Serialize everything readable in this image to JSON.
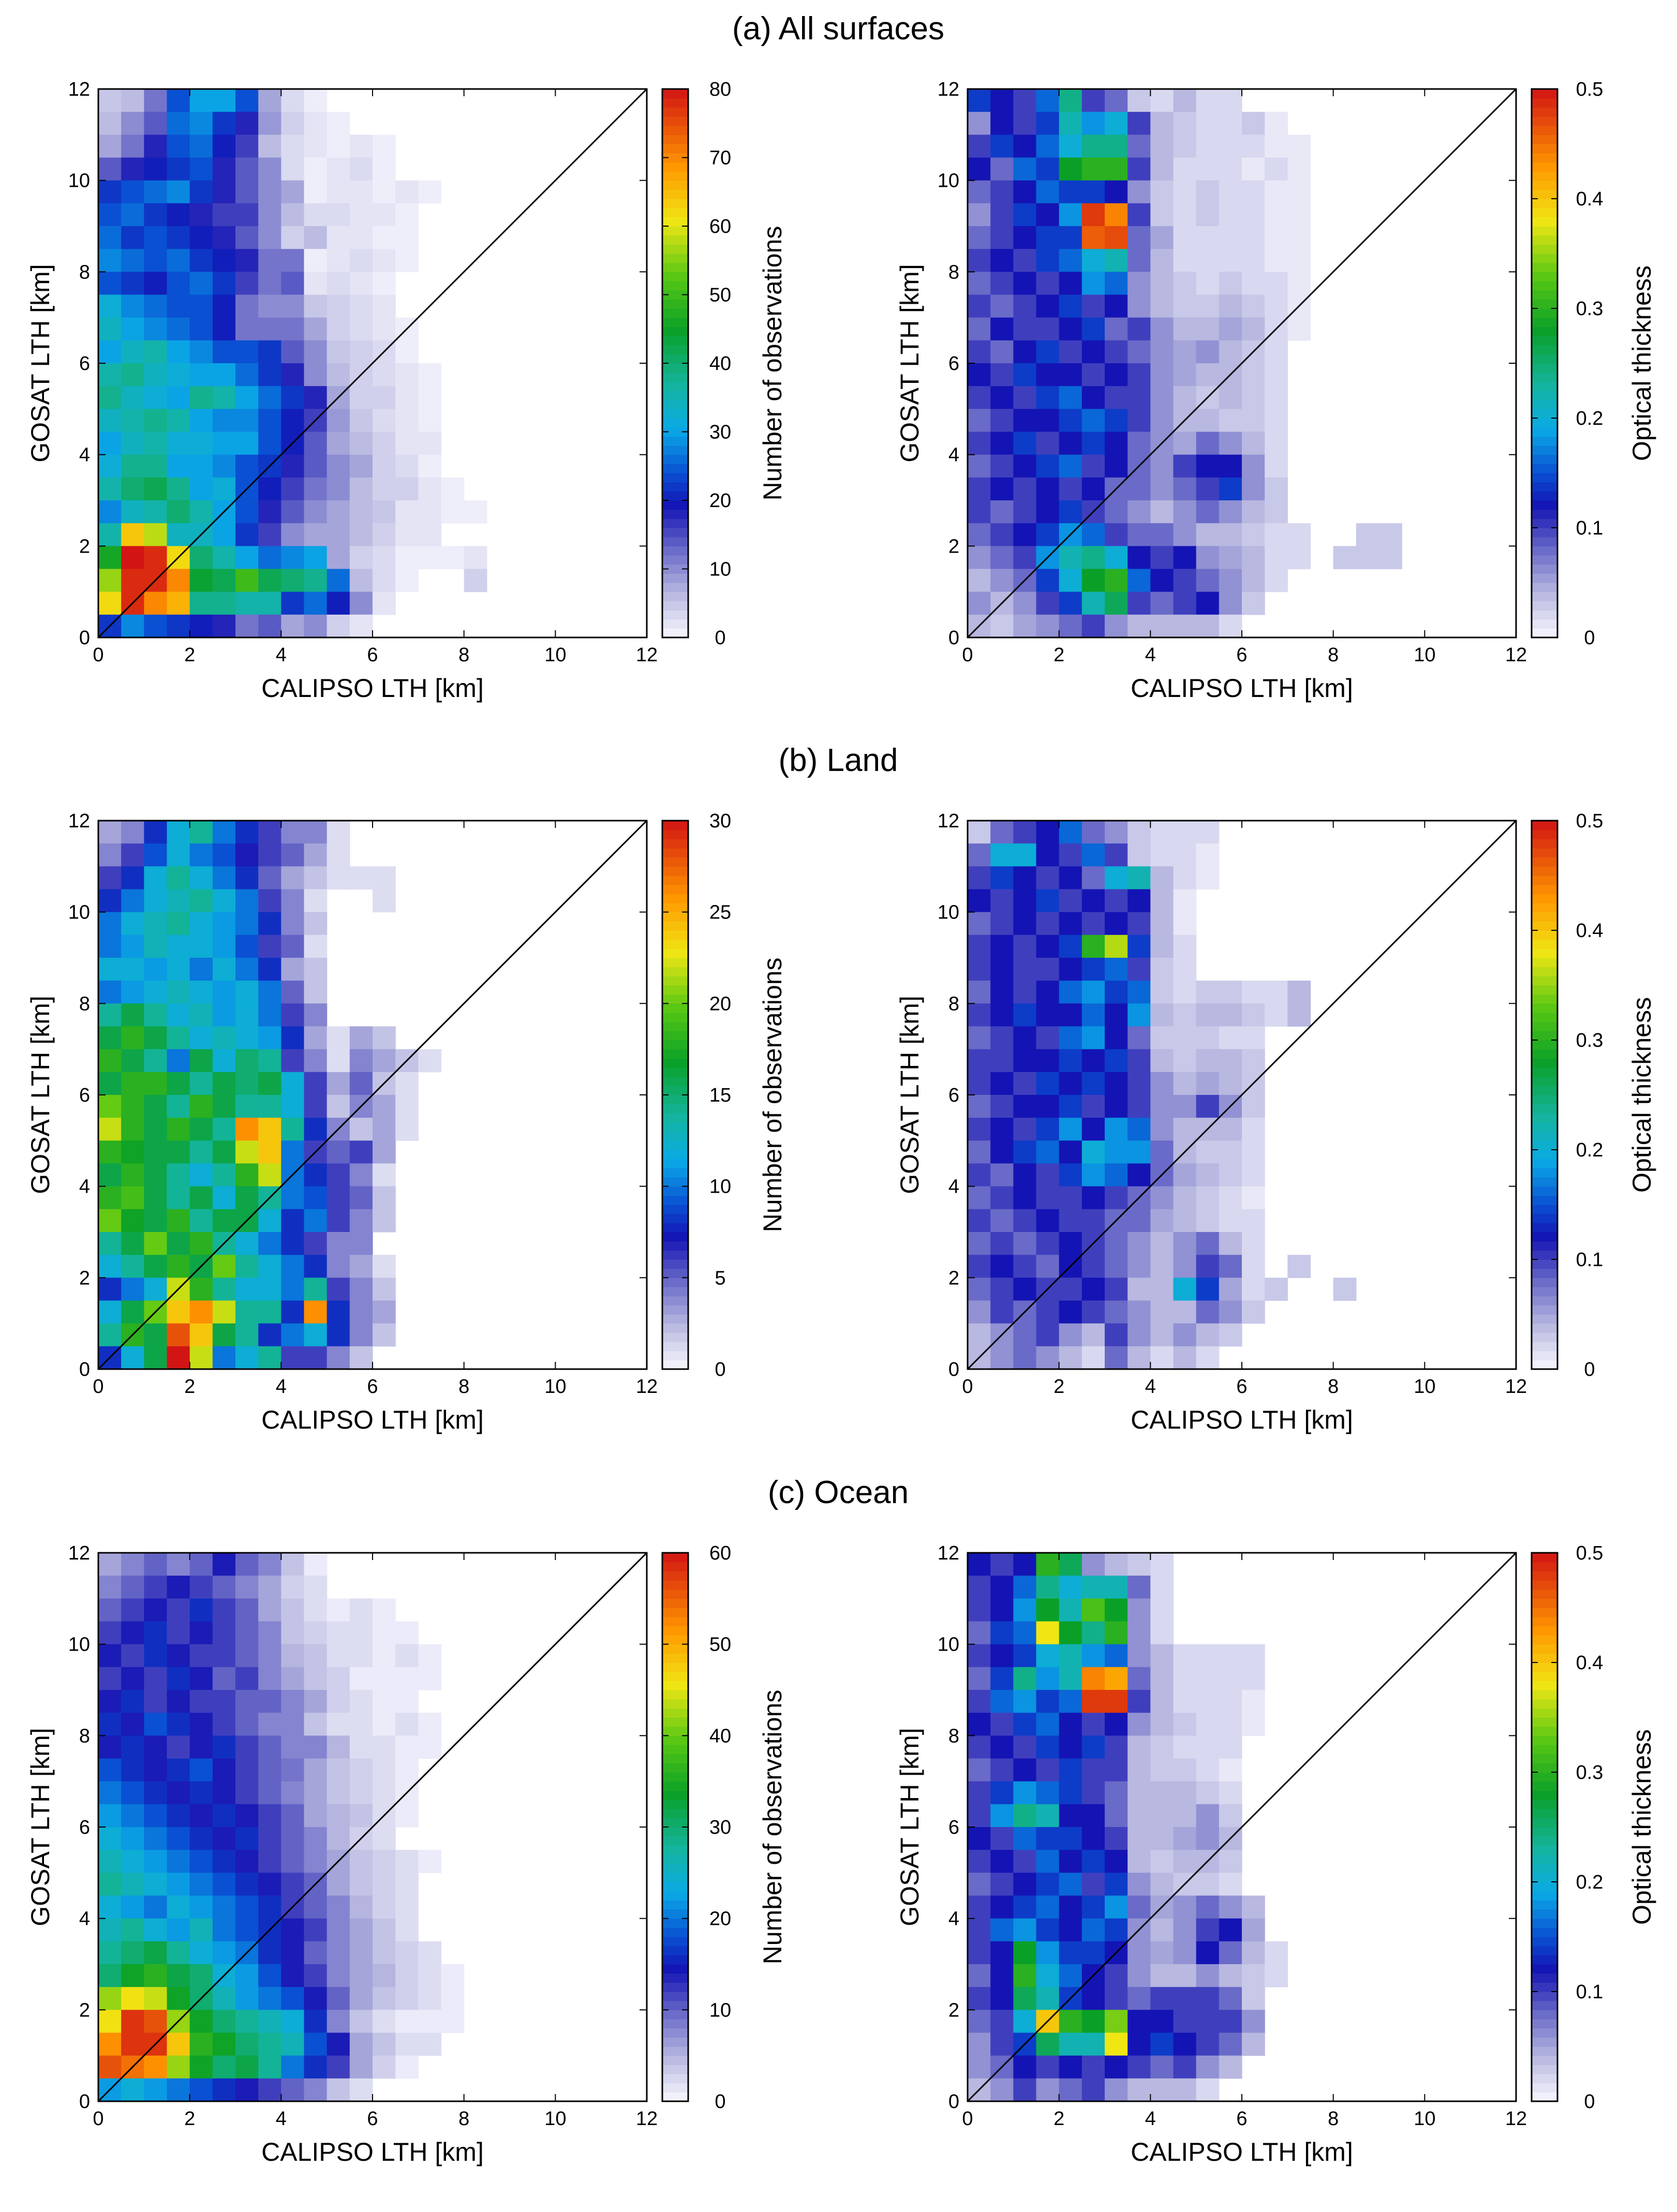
{
  "figure": {
    "rows": [
      {
        "title": "(a) All surfaces"
      },
      {
        "title": "(b) Land"
      },
      {
        "title": "(c) Ocean"
      }
    ],
    "xlabel": "CALIPSO LTH [km]",
    "ylabel": "GOSAT LTH [km]",
    "axis_ticks": [
      "0",
      "2",
      "4",
      "6",
      "8",
      "10",
      "12"
    ],
    "cbar_labels": {
      "count": "Number of observations",
      "tau": "Optical thickness"
    }
  },
  "colormap": {
    "stops": [
      {
        "v": 0.0,
        "c": "#f8f8ff"
      },
      {
        "v": 0.08,
        "c": "#b8b8e0"
      },
      {
        "v": 0.16,
        "c": "#6a6ac8"
      },
      {
        "v": 0.24,
        "c": "#1414b4"
      },
      {
        "v": 0.3,
        "c": "#0a50d2"
      },
      {
        "v": 0.38,
        "c": "#0aaae6"
      },
      {
        "v": 0.46,
        "c": "#14b4a0"
      },
      {
        "v": 0.56,
        "c": "#0aa028"
      },
      {
        "v": 0.66,
        "c": "#5ac814"
      },
      {
        "v": 0.76,
        "c": "#f0e614"
      },
      {
        "v": 0.86,
        "c": "#ff9600"
      },
      {
        "v": 1.0,
        "c": "#d21414"
      }
    ],
    "frame_color": "#000000",
    "diag_color": "#000000"
  },
  "chart_data": [
    {
      "type": "heatmap",
      "title": "(a) All surfaces",
      "xlabel": "CALIPSO LTH [km]",
      "ylabel": "GOSAT LTH [km]",
      "xlim": [
        0,
        12
      ],
      "ylim": [
        0,
        12
      ],
      "bin_size_km": 0.5,
      "colorbar": {
        "label": "Number of observations",
        "range": [
          0,
          80
        ],
        "ticks": [
          "0",
          "10",
          "20",
          "30",
          "40",
          "50",
          "60",
          "70",
          "80"
        ]
      },
      "grid_rows_top_to_bottom": [
        "5 6 12 24 30 30 24 8 3 1 0 0 0 0 0 0 0 0 0 0 0 0 0 0",
        "6 10 14 26 28 22 18 9 4 2 1 0 0 0 0 0 0 0 0 0 0 0 0 0",
        "8 12 18 24 26 20 16 6 3 2 1 2 1 0 0 0 0 0 0 0 0 0 0 0",
        "14 18 20 22 24 18 14 10 3 1 2 3 1 0 0 0 0 0 0 0 0 0 0 0",
        "22 24 26 28 22 18 14 10 8 1 2 2 1 2 1 0 0 0 0 0 0 0 0 0",
        "24 26 22 20 18 16 16 10 6 3 3 2 2 1 0 0 0 0 0 0 0 0 0 0",
        "26 22 24 22 20 18 14 10 4 6 2 2 1 1 0 0 0 0 0 0 0 0 0 0",
        "28 26 24 26 22 20 18 12 12 1 2 3 2 1 0 0 0 0 0 0 0 0 0 0",
        "24 22 20 24 26 22 16 12 14 2 3 2 1 0 0 0 0 0 0 0 0 0 0 0",
        "32 28 26 24 24 20 12 10 10 5 4 3 2 0 0 0 0 0 0 0 0 0 0 0",
        "34 30 28 26 24 20 12 12 12 8 4 3 2 1 0 0 0 0 0 0 0 0 0 0",
        "30 34 36 30 28 24 24 22 14 10 5 4 3 1 0 0 0 0 0 0 0 0 0 0",
        "36 38 34 32 30 30 26 22 18 10 6 4 3 2 1 0 0 0 0 0 0 0 0 0",
        "38 34 32 30 38 36 30 26 22 18 8 4 4 2 1 0 0 0 0 0 0 0 0 0",
        "34 36 38 36 30 28 28 24 20 16 9 5 3 2 1 0 0 0 0 0 0 0 0 0",
        "30 34 36 32 32 30 30 24 20 14 8 6 4 2 2 0 0 0 0 0 0 0 0 0",
        "32 38 38 30 30 28 24 22 18 14 10 8 4 3 1 0 0 0 0 0 0 0 0 0",
        "36 40 42 38 30 32 24 20 16 12 10 6 4 4 2 1 0 0 0 0 0 0 0 0",
        "28 34 36 40 36 30 24 18 14 10 8 6 5 2 2 1 1 0 0 0 0 0 0 0",
        "36 64 58 34 34 30 22 16 10 8 8 6 4 2 2 0 0 0 0 0 0 0 0 0",
        "46 80 78 62 40 36 30 26 28 30 8 4 3 1 1 1 2 0 0 0 0 0 0 0",
        "56 78 78 70 44 42 50 42 40 38 26 6 3 1 0 0 4 0 0 0 0 0 0 0",
        "62 78 70 66 38 38 36 36 22 26 20 10 2 0 0 0 0 0 0 0 0 0 0 0",
        "22 28 24 22 20 18 12 14 8 10 4 2 0 0 0 0 0 0 0 0 0 0 0 0"
      ]
    },
    {
      "type": "heatmap",
      "title": "(a) All surfaces",
      "xlabel": "CALIPSO LTH [km]",
      "ylabel": "GOSAT LTH [km]",
      "xlim": [
        0,
        12
      ],
      "ylim": [
        0,
        12
      ],
      "bin_size_km": 0.5,
      "colorbar": {
        "label": "Optical thickness",
        "range": [
          0,
          0.5
        ],
        "ticks": [
          "0",
          "0.1",
          "0.2",
          "0.3",
          "0.4",
          "0.5"
        ]
      },
      "grid_rows_top_to_bottom": [
        "0.14 0.12 0.10 0.16 0.24 0.10 0.08 0.03 0.02 0.04 0.02 0.02 0.00 0.00 0.00 0.00 0.00 0.00 0.00 0.00 0.00 0.00 0.00 0.00",
        "0.06 0.12 0.10 0.14 0.22 0.18 0.20 0.10 0.04 0.03 0.02 0.02 0.03 0.01 0.00 0.00 0.00 0.00 0.00 0.00 0.00 0.00 0.00 0.00",
        "0.10 0.14 0.12 0.16 0.20 0.24 0.24 0.08 0.04 0.03 0.02 0.02 0.02 0.01 0.01 0.00 0.00 0.00 0.00 0.00 0.00 0.00 0.00 0.00",
        "0.12 0.08 0.16 0.14 0.28 0.30 0.30 0.10 0.04 0.02 0.02 0.02 0.01 0.02 0.01 0.00 0.00 0.00 0.00 0.00 0.00 0.00 0.00 0.00",
        "0.08 0.10 0.12 0.16 0.14 0.14 0.12 0.06 0.03 0.02 0.03 0.02 0.02 0.01 0.01 0.00 0.00 0.00 0.00 0.00 0.00 0.00 0.00 0.00",
        "0.06 0.10 0.14 0.12 0.18 0.48 0.44 0.10 0.03 0.02 0.03 0.02 0.02 0.01 0.01 0.00 0.00 0.00 0.00 0.00 0.00 0.00 0.00 0.00",
        "0.08 0.10 0.12 0.14 0.14 0.46 0.47 0.08 0.05 0.02 0.02 0.02 0.02 0.01 0.01 0.00 0.00 0.00 0.00 0.00 0.00 0.00 0.00 0.00",
        "0.10 0.12 0.10 0.14 0.16 0.20 0.22 0.08 0.04 0.02 0.02 0.02 0.02 0.01 0.01 0.00 0.00 0.00 0.00 0.00 0.00 0.00 0.00 0.00",
        "0.08 0.10 0.12 0.10 0.12 0.18 0.16 0.06 0.04 0.03 0.02 0.03 0.02 0.02 0.01 0.00 0.00 0.00 0.00 0.00 0.00 0.00 0.00 0.00",
        "0.10 0.08 0.10 0.12 0.14 0.10 0.12 0.06 0.04 0.03 0.03 0.04 0.03 0.02 0.01 0.00 0.00 0.00 0.00 0.00 0.00 0.00 0.00 0.00",
        "0.08 0.12 0.10 0.10 0.12 0.14 0.08 0.10 0.06 0.04 0.04 0.05 0.04 0.02 0.01 0.00 0.00 0.00 0.00 0.00 0.00 0.00 0.00 0.00",
        "0.10 0.08 0.12 0.14 0.10 0.12 0.10 0.08 0.06 0.05 0.06 0.04 0.03 0.02 0.00 0.00 0.00 0.00 0.00 0.00 0.00 0.00 0.00 0.00",
        "0.12 0.10 0.14 0.12 0.12 0.10 0.12 0.10 0.06 0.05 0.04 0.04 0.03 0.02 0.00 0.00 0.00 0.00 0.00 0.00 0.00 0.00 0.00 0.00",
        "0.10 0.12 0.10 0.14 0.16 0.12 0.10 0.10 0.06 0.04 0.03 0.04 0.03 0.02 0.00 0.00 0.00 0.00 0.00 0.00 0.00 0.00 0.00 0.00",
        "0.08 0.10 0.12 0.12 0.14 0.16 0.14 0.10 0.06 0.04 0.04 0.03 0.03 0.02 0.00 0.00 0.00 0.00 0.00 0.00 0.00 0.00 0.00 0.00",
        "0.10 0.12 0.14 0.10 0.12 0.14 0.12 0.08 0.06 0.05 0.08 0.06 0.04 0.02 0.00 0.00 0.00 0.00 0.00 0.00 0.00 0.00 0.00 0.00",
        "0.08 0.10 0.12 0.14 0.16 0.10 0.12 0.08 0.06 0.10 0.12 0.12 0.06 0.02 0.00 0.00 0.00 0.00 0.00 0.00 0.00 0.00 0.00 0.00",
        "0.10 0.12 0.10 0.12 0.10 0.12 0.08 0.08 0.06 0.08 0.10 0.14 0.06 0.03 0.00 0.00 0.00 0.00 0.00 0.00 0.00 0.00 0.00 0.00",
        "0.10 0.08 0.10 0.12 0.14 0.10 0.08 0.06 0.04 0.06 0.08 0.06 0.04 0.03 0.00 0.00 0.00 0.00 0.00 0.00 0.00 0.00 0.00 0.00",
        "0.08 0.10 0.12 0.14 0.18 0.16 0.10 0.08 0.08 0.06 0.04 0.04 0.03 0.02 0.02 0.00 0.00 0.03 0.03 0.00 0.00 0.00 0.00 0.00",
        "0.06 0.08 0.10 0.18 0.22 0.24 0.20 0.12 0.10 0.12 0.06 0.05 0.04 0.02 0.02 0.00 0.03 0.03 0.03 0.00 0.00 0.00 0.00 0.00",
        "0.04 0.06 0.08 0.14 0.20 0.28 0.30 0.16 0.12 0.10 0.08 0.06 0.04 0.02 0.00 0.00 0.00 0.00 0.00 0.00 0.00 0.00 0.00 0.00",
        "0.06 0.04 0.06 0.10 0.14 0.22 0.26 0.10 0.08 0.10 0.12 0.06 0.03 0.00 0.00 0.00 0.00 0.00 0.00 0.00 0.00 0.00 0.00 0.00",
        "0.04 0.03 0.05 0.06 0.08 0.10 0.06 0.04 0.04 0.04 0.04 0.02 0.00 0.00 0.00 0.00 0.00 0.00 0.00 0.00 0.00 0.00 0.00 0.00"
      ]
    },
    {
      "type": "heatmap",
      "title": "(b) Land",
      "xlabel": "CALIPSO LTH [km]",
      "ylabel": "GOSAT LTH [km]",
      "xlim": [
        0,
        12
      ],
      "ylim": [
        0,
        12
      ],
      "bin_size_km": 0.5,
      "colorbar": {
        "label": "Number of observations",
        "range": [
          0,
          30
        ],
        "ticks": [
          "0",
          "5",
          "10",
          "15",
          "20",
          "25",
          "30"
        ]
      },
      "grid_rows_top_to_bottom": [
        "3 4 8 12 14 10 8 6 4 4 1 0 0 0 0 0 0 0 0 0 0 0 0 0",
        "4 6 9 12 10 9 7 6 5 3 1 0 0 0 0 0 0 0 0 0 0 0 0 0",
        "6 8 12 14 12 10 8 5 3 2 1 1 1 0 0 0 0 0 0 0 0 0 0 0",
        "8 10 12 13 14 12 10 6 4 1 0 0 1 0 0 0 0 0 0 0 0 0 0 0",
        "10 12 13 14 12 11 10 8 4 2 0 0 0 0 0 0 0 0 0 0 0 0 0 0",
        "10 11 13 12 12 11 9 6 5 1 0 0 0 0 0 0 0 0 0 0 0 0 0 0",
        "12 12 11 12 10 12 10 8 3 2 0 0 0 0 0 0 0 0 0 0 0 0 0 0",
        "10 11 12 13 12 11 12 10 5 2 0 0 0 0 0 0 0 0 0 0 0 0 0 0",
        "14 16 14 12 13 11 12 10 6 4 0 0 0 0 0 0 0 0 0 0 0 0 0 0",
        "16 18 16 14 12 13 12 11 8 3 1 3 2 0 0 0 0 0 0 0 0 0 0 0",
        "18 16 14 10 16 12 15 14 6 4 1 4 3 2 1 0 0 0 0 0 0 0 0 0",
        "16 18 18 16 14 16 15 16 12 6 3 5 2 1 0 0 0 0 0 0 0 0 0 0",
        "20 18 16 14 18 16 14 14 12 6 2 4 3 1 0 0 0 0 0 0 0 0 0 0",
        "22 18 16 18 16 14 26 24 14 8 4 2 3 1 0 0 0 0 0 0 0 0 0 0",
        "18 17 16 16 14 16 22 24 10 6 5 6 3 0 0 0 0 0 0 0 0 0 0 0",
        "16 18 16 14 12 14 18 22 10 8 6 4 1 0 0 0 0 0 0 0 0 0 0 0",
        "18 19 16 14 16 12 16 14 10 9 6 5 2 0 0 0 0 0 0 0 0 0 0 0",
        "20 17 16 18 14 16 16 12 8 10 6 4 2 0 0 0 0 0 0 0 0 0 0 0",
        "14 16 20 16 18 14 12 10 8 6 4 4 0 0 0 0 0 0 0 0 0 0 0 0",
        "12 14 16 18 16 20 14 12 10 8 4 3 1 0 0 0 0 0 0 0 0 0 0 0",
        "8 10 12 22 18 14 12 12 10 14 6 4 2 0 0 0 0 0 0 0 0 0 0 0",
        "12 16 20 24 26 22 14 14 8 26 8 4 3 0 0 0 0 0 0 0 0 0 0 0",
        "14 18 16 28 24 16 14 8 10 12 8 4 2 0 0 0 0 0 0 0 0 0 0 0",
        "8 12 16 30 22 10 12 14 6 6 4 2 0 0 0 0 0 0 0 0 0 0 0 0"
      ]
    },
    {
      "type": "heatmap",
      "title": "(b) Land",
      "xlabel": "CALIPSO LTH [km]",
      "ylabel": "GOSAT LTH [km]",
      "xlim": [
        0,
        12
      ],
      "ylim": [
        0,
        12
      ],
      "bin_size_km": 0.5,
      "colorbar": {
        "label": "Optical thickness",
        "range": [
          0,
          0.5
        ],
        "ticks": [
          "0",
          "0.1",
          "0.2",
          "0.3",
          "0.4",
          "0.5"
        ]
      },
      "grid_rows_top_to_bottom": [
        "0.03 0.08 0.10 0.12 0.16 0.08 0.06 0.03 0.02 0.02 0.02 0.00 0.00 0.00 0.00 0.00 0.00 0.00 0.00 0.00 0.00 0.00 0.00 0.00",
        "0.08 0.20 0.20 0.12 0.10 0.16 0.10 0.03 0.02 0.02 0.01 0.00 0.00 0.00 0.00 0.00 0.00 0.00 0.00 0.00 0.00 0.00 0.00 0.00",
        "0.10 0.14 0.12 0.10 0.12 0.08 0.20 0.22 0.04 0.02 0.01 0.00 0.00 0.00 0.00 0.00 0.00 0.00 0.00 0.00 0.00 0.00 0.00 0.00",
        "0.12 0.10 0.12 0.14 0.10 0.12 0.10 0.12 0.04 0.01 0.00 0.00 0.00 0.00 0.00 0.00 0.00 0.00 0.00 0.00 0.00 0.00 0.00 0.00",
        "0.08 0.10 0.12 0.10 0.12 0.10 0.12 0.10 0.04 0.01 0.00 0.00 0.00 0.00 0.00 0.00 0.00 0.00 0.00 0.00 0.00 0.00 0.00 0.00",
        "0.10 0.12 0.10 0.12 0.14 0.30 0.36 0.14 0.04 0.02 0.00 0.00 0.00 0.00 0.00 0.00 0.00 0.00 0.00 0.00 0.00 0.00 0.00 0.00",
        "0.10 0.12 0.10 0.10 0.12 0.14 0.16 0.10 0.03 0.02 0.00 0.00 0.00 0.00 0.00 0.00 0.00 0.00 0.00 0.00 0.00 0.00 0.00 0.00",
        "0.08 0.12 0.10 0.12 0.16 0.18 0.14 0.16 0.03 0.02 0.03 0.03 0.02 0.02 0.04 0.00 0.00 0.00 0.00 0.00 0.00 0.00 0.00 0.00",
        "0.10 0.12 0.14 0.12 0.12 0.16 0.12 0.18 0.04 0.03 0.04 0.04 0.03 0.02 0.04 0.00 0.00 0.00 0.00 0.00 0.00 0.00 0.00 0.00",
        "0.08 0.10 0.12 0.10 0.16 0.18 0.12 0.08 0.03 0.03 0.03 0.02 0.02 0.00 0.00 0.00 0.00 0.00 0.00 0.00 0.00 0.00 0.00 0.00",
        "0.10 0.10 0.12 0.12 0.14 0.12 0.14 0.10 0.04 0.03 0.04 0.04 0.03 0.00 0.00 0.00 0.00 0.00 0.00 0.00 0.00 0.00 0.00 0.00",
        "0.10 0.12 0.10 0.14 0.12 0.14 0.12 0.10 0.06 0.04 0.05 0.04 0.03 0.00 0.00 0.00 0.00 0.00 0.00 0.00 0.00 0.00 0.00 0.00",
        "0.08 0.10 0.12 0.12 0.14 0.10 0.12 0.10 0.06 0.06 0.10 0.06 0.03 0.00 0.00 0.00 0.00 0.00 0.00 0.00 0.00 0.00 0.00 0.00",
        "0.10 0.12 0.10 0.14 0.18 0.12 0.18 0.16 0.06 0.04 0.04 0.04 0.02 0.00 0.00 0.00 0.00 0.00 0.00 0.00 0.00 0.00 0.00 0.00",
        "0.08 0.12 0.14 0.16 0.12 0.20 0.18 0.18 0.08 0.04 0.03 0.03 0.02 0.00 0.00 0.00 0.00 0.00 0.00 0.00 0.00 0.00 0.00 0.00",
        "0.10 0.08 0.12 0.10 0.14 0.18 0.16 0.12 0.08 0.05 0.04 0.03 0.02 0.00 0.00 0.00 0.00 0.00 0.00 0.00 0.00 0.00 0.00 0.00",
        "0.08 0.10 0.12 0.10 0.10 0.12 0.10 0.08 0.06 0.04 0.03 0.02 0.01 0.00 0.00 0.00 0.00 0.00 0.00 0.00 0.00 0.00 0.00 0.00",
        "0.10 0.08 0.10 0.12 0.10 0.10 0.08 0.08 0.05 0.04 0.03 0.02 0.02 0.00 0.00 0.00 0.00 0.00 0.00 0.00 0.00 0.00 0.00 0.00",
        "0.08 0.10 0.08 0.10 0.12 0.10 0.08 0.06 0.04 0.06 0.08 0.04 0.02 0.00 0.00 0.00 0.00 0.00 0.00 0.00 0.00 0.00 0.00 0.00",
        "0.10 0.12 0.10 0.08 0.12 0.10 0.08 0.06 0.04 0.06 0.10 0.08 0.02 0.00 0.03 0.00 0.00 0.00 0.00 0.00 0.00 0.00 0.00 0.00",
        "0.08 0.10 0.12 0.10 0.10 0.12 0.10 0.04 0.04 0.20 0.14 0.05 0.02 0.03 0.00 0.00 0.03 0.00 0.00 0.00 0.00 0.00 0.00 0.00",
        "0.06 0.10 0.08 0.10 0.12 0.10 0.08 0.06 0.04 0.04 0.08 0.06 0.03 0.00 0.00 0.00 0.00 0.00 0.00 0.00 0.00 0.00 0.00 0.00",
        "0.04 0.06 0.08 0.10 0.06 0.04 0.10 0.06 0.04 0.06 0.04 0.03 0.00 0.00 0.00 0.00 0.00 0.00 0.00 0.00 0.00 0.00 0.00 0.00",
        "0.04 0.06 0.08 0.06 0.04 0.02 0.08 0.04 0.02 0.04 0.02 0.00 0.00 0.00 0.00 0.00 0.00 0.00 0.00 0.00 0.00 0.00 0.00 0.00"
      ]
    },
    {
      "type": "heatmap",
      "title": "(c) Ocean",
      "xlabel": "CALIPSO LTH [km]",
      "ylabel": "GOSAT LTH [km]",
      "xlim": [
        0,
        12
      ],
      "ylim": [
        0,
        12
      ],
      "bin_size_km": 0.5,
      "colorbar": {
        "label": "Number of observations",
        "range": [
          0,
          60
        ],
        "ticks": [
          "0",
          "10",
          "20",
          "30",
          "40",
          "50",
          "60"
        ]
      },
      "grid_rows_top_to_bottom": [
        "6 8 10 8 10 14 10 8 4 1 0 0 0 0 0 0 0 0 0 0 0 0 0 0",
        "8 10 12 14 12 10 8 6 3 2 0 0 0 0 0 0 0 0 0 0 0 0 0 0",
        "10 12 14 12 16 12 10 6 4 2 1 2 1 0 0 0 0 0 0 0 0 0 0 0",
        "12 14 16 12 14 12 10 8 4 3 2 2 1 1 0 0 0 0 0 0 0 0 0 0",
        "14 12 16 14 12 12 10 8 5 4 2 2 1 2 1 0 0 0 0 0 0 0 0 0",
        "12 14 12 16 14 10 12 8 6 4 3 1 1 1 1 0 0 0 0 0 0 0 0 0",
        "14 16 12 14 12 12 10 10 8 6 3 2 1 1 0 0 0 0 0 0 0 0 0 0",
        "16 14 18 16 14 12 10 8 8 4 2 2 1 2 1 0 0 0 0 0 0 0 0 0",
        "14 16 14 12 14 16 12 10 8 8 5 2 2 1 1 0 0 0 0 0 0 0 0 0",
        "18 16 14 16 18 14 12 10 9 6 4 3 2 1 0 0 0 0 0 0 0 0 0 0",
        "20 18 16 14 16 14 12 10 8 6 4 3 2 1 0 0 0 0 0 0 0 0 0 0",
        "22 20 18 16 14 16 14 12 10 6 5 4 2 1 0 0 0 0 0 0 0 0 0 0",
        "24 22 20 18 16 14 16 12 10 8 5 3 2 0 0 0 0 0 0 0 0 0 0 0",
        "26 24 22 20 18 16 14 12 10 8 6 4 3 2 1 0 0 0 0 0 0 0 0 0",
        "28 26 24 22 20 18 16 14 12 10 6 4 3 2 0 0 0 0 0 0 0 0 0 0",
        "24 22 20 24 22 20 18 16 12 10 8 5 3 2 0 0 0 0 0 0 0 0 0 0",
        "26 28 24 22 26 20 18 16 14 12 8 6 4 2 0 0 0 0 0 0 0 0 0 0",
        "28 30 32 28 24 22 20 16 14 10 8 6 4 3 2 0 0 0 0 0 0 0 0 0",
        "30 34 36 32 30 24 22 18 14 12 8 6 5 3 2 1 0 0 0 0 0 0 0 0",
        "42 46 44 34 30 26 22 20 18 14 10 6 4 3 2 1 0 0 0 0 0 0 0 0",
        "46 58 56 42 34 30 28 26 24 16 8 4 2 1 1 1 0 0 0 0 0 0 0 0",
        "52 58 58 48 36 34 30 28 26 18 14 6 4 2 2 0 0 0 0 0 0 0 0 0",
        "56 54 52 42 34 30 32 28 20 16 12 6 3 1 0 0 0 0 0 0 0 0 0 0",
        "22 24 22 20 18 16 14 12 10 8 4 2 0 0 0 0 0 0 0 0 0 0 0 0"
      ]
    },
    {
      "type": "heatmap",
      "title": "(c) Ocean",
      "xlabel": "CALIPSO LTH [km]",
      "ylabel": "GOSAT LTH [km]",
      "xlim": [
        0,
        12
      ],
      "ylim": [
        0,
        12
      ],
      "bin_size_km": 0.5,
      "colorbar": {
        "label": "Optical thickness",
        "range": [
          0,
          0.5
        ],
        "ticks": [
          "0",
          "0.1",
          "0.2",
          "0.3",
          "0.4",
          "0.5"
        ]
      },
      "grid_rows_top_to_bottom": [
        "0.12 0.10 0.12 0.30 0.26 0.06 0.04 0.03 0.02 0.00 0.00 0.00 0.00 0.00 0.00 0.00 0.00 0.00 0.00 0.00 0.00 0.00 0.00 0.00",
        "0.10 0.12 0.16 0.24 0.20 0.22 0.22 0.08 0.02 0.00 0.00 0.00 0.00 0.00 0.00 0.00 0.00 0.00 0.00 0.00 0.00 0.00 0.00 0.00",
        "0.10 0.12 0.18 0.28 0.22 0.32 0.28 0.06 0.02 0.00 0.00 0.00 0.00 0.00 0.00 0.00 0.00 0.00 0.00 0.00 0.00 0.00 0.00 0.00",
        "0.08 0.14 0.16 0.38 0.28 0.24 0.30 0.06 0.02 0.00 0.00 0.00 0.00 0.00 0.00 0.00 0.00 0.00 0.00 0.00 0.00 0.00 0.00 0.00",
        "0.10 0.12 0.14 0.20 0.22 0.18 0.16 0.06 0.04 0.02 0.02 0.02 0.02 0.00 0.00 0.00 0.00 0.00 0.00 0.00 0.00 0.00 0.00 0.00",
        "0.08 0.14 0.24 0.18 0.22 0.44 0.42 0.08 0.04 0.02 0.02 0.02 0.02 0.00 0.00 0.00 0.00 0.00 0.00 0.00 0.00 0.00 0.00 0.00",
        "0.10 0.16 0.18 0.14 0.16 0.48 0.48 0.10 0.04 0.02 0.02 0.02 0.01 0.00 0.00 0.00 0.00 0.00 0.00 0.00 0.00 0.00 0.00 0.00",
        "0.12 0.10 0.14 0.16 0.12 0.10 0.12 0.06 0.04 0.03 0.02 0.02 0.01 0.00 0.00 0.00 0.00 0.00 0.00 0.00 0.00 0.00 0.00 0.00",
        "0.10 0.12 0.10 0.14 0.12 0.14 0.10 0.04 0.03 0.02 0.02 0.02 0.00 0.00 0.00 0.00 0.00 0.00 0.00 0.00 0.00 0.00 0.00 0.00",
        "0.08 0.10 0.12 0.10 0.14 0.10 0.10 0.04 0.03 0.03 0.02 0.01 0.00 0.00 0.00 0.00 0.00 0.00 0.00 0.00 0.00 0.00 0.00 0.00",
        "0.10 0.14 0.18 0.16 0.14 0.10 0.08 0.04 0.04 0.04 0.03 0.02 0.00 0.00 0.00 0.00 0.00 0.00 0.00 0.00 0.00 0.00 0.00 0.00",
        "0.10 0.18 0.24 0.22 0.12 0.12 0.08 0.04 0.04 0.04 0.06 0.03 0.00 0.00 0.00 0.00 0.00 0.00 0.00 0.00 0.00 0.00 0.00 0.00",
        "0.12 0.10 0.16 0.14 0.14 0.12 0.10 0.04 0.04 0.05 0.06 0.04 0.00 0.00 0.00 0.00 0.00 0.00 0.00 0.00 0.00 0.00 0.00 0.00",
        "0.10 0.12 0.10 0.16 0.12 0.14 0.12 0.04 0.03 0.04 0.04 0.03 0.00 0.00 0.00 0.00 0.00 0.00 0.00 0.00 0.00 0.00 0.00 0.00",
        "0.08 0.10 0.12 0.14 0.16 0.10 0.14 0.06 0.04 0.03 0.03 0.02 0.00 0.00 0.00 0.00 0.00 0.00 0.00 0.00 0.00 0.00 0.00 0.00",
        "0.10 0.12 0.14 0.16 0.12 0.14 0.18 0.08 0.05 0.06 0.08 0.06 0.04 0.00 0.00 0.00 0.00 0.00 0.00 0.00 0.00 0.00 0.00 0.00",
        "0.10 0.16 0.18 0.14 0.12 0.16 0.14 0.06 0.04 0.06 0.10 0.12 0.05 0.00 0.00 0.00 0.00 0.00 0.00 0.00 0.00 0.00 0.00 0.00",
        "0.10 0.12 0.28 0.18 0.14 0.14 0.12 0.06 0.05 0.06 0.12 0.08 0.04 0.02 0.00 0.00 0.00 0.00 0.00 0.00 0.00 0.00 0.00 0.00",
        "0.08 0.12 0.30 0.20 0.16 0.12 0.10 0.06 0.04 0.04 0.06 0.04 0.03 0.02 0.00 0.00 0.00 0.00 0.00 0.00 0.00 0.00 0.00 0.00",
        "0.10 0.12 0.26 0.22 0.14 0.12 0.10 0.08 0.10 0.10 0.10 0.08 0.03 0.00 0.00 0.00 0.00 0.00 0.00 0.00 0.00 0.00 0.00 0.00",
        "0.08 0.10 0.20 0.40 0.30 0.28 0.34 0.12 0.12 0.10 0.10 0.10 0.06 0.00 0.00 0.00 0.00 0.00 0.00 0.00 0.00 0.00 0.00 0.00",
        "0.06 0.10 0.14 0.26 0.22 0.22 0.38 0.12 0.14 0.12 0.10 0.08 0.04 0.00 0.00 0.00 0.00 0.00 0.00 0.00 0.00 0.00 0.00 0.00",
        "0.06 0.08 0.12 0.10 0.12 0.10 0.12 0.10 0.08 0.10 0.06 0.04 0.00 0.00 0.00 0.00 0.00 0.00 0.00 0.00 0.00 0.00 0.00 0.00",
        "0.04 0.06 0.10 0.06 0.08 0.10 0.06 0.04 0.04 0.04 0.02 0.00 0.00 0.00 0.00 0.00 0.00 0.00 0.00 0.00 0.00 0.00 0.00 0.00"
      ]
    }
  ]
}
